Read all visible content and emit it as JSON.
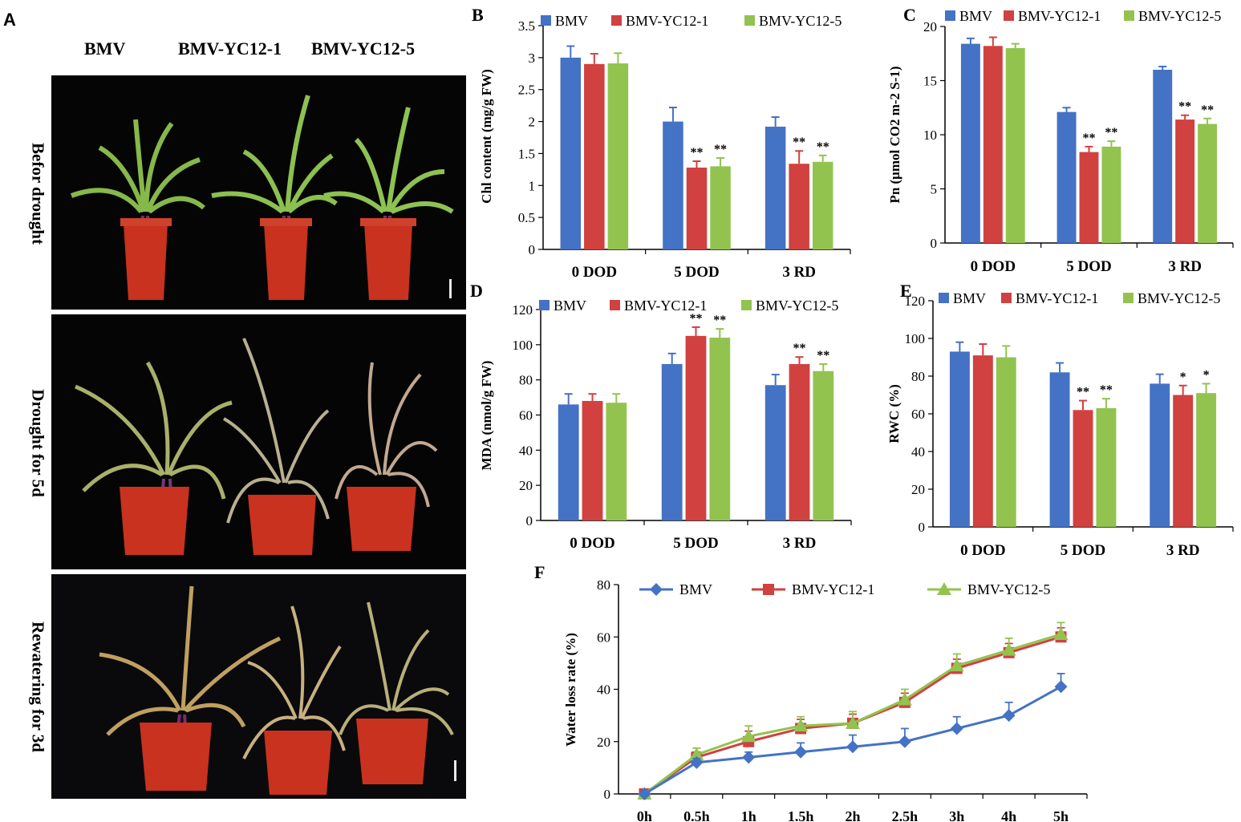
{
  "panel_a": {
    "letter": "A",
    "column_headers": [
      "BMV",
      "BMV-YC12-1",
      "BMV-YC12-5"
    ],
    "row_labels": [
      "Befor drought",
      "Drought for 5d",
      "Rewatering for 3d"
    ]
  },
  "colors": {
    "bmv": "#4472C4",
    "yc12_1": "#D0413F",
    "yc12_5": "#93C34F",
    "pot": "#C8321E"
  },
  "chart_data": [
    {
      "panel": "B",
      "type": "bar",
      "ylabel": "Chl content (mg/g FW)",
      "ylim": [
        0,
        3.5
      ],
      "yticks": [
        "0",
        "0.5",
        "1",
        "1.5",
        "2",
        "2.5",
        "3",
        "3.5"
      ],
      "categories": [
        "0 DOD",
        "5 DOD",
        "3 RD"
      ],
      "legend": [
        "BMV",
        "BMV-YC12-1",
        "BMV-YC12-5"
      ],
      "series": [
        {
          "name": "BMV",
          "values": [
            3.0,
            2.0,
            1.92
          ],
          "errors": [
            0.18,
            0.22,
            0.15
          ],
          "marks": [
            "",
            "",
            ""
          ]
        },
        {
          "name": "BMV-YC12-1",
          "values": [
            2.9,
            1.28,
            1.34
          ],
          "errors": [
            0.16,
            0.1,
            0.2
          ],
          "marks": [
            "",
            "**",
            "**"
          ]
        },
        {
          "name": "BMV-YC12-5",
          "values": [
            2.91,
            1.3,
            1.37
          ],
          "errors": [
            0.16,
            0.13,
            0.1
          ],
          "marks": [
            "",
            "**",
            "**"
          ]
        }
      ]
    },
    {
      "panel": "C",
      "type": "bar",
      "ylabel": "Pn (μmol CO2 m-2  S-1)",
      "ylim": [
        0,
        20
      ],
      "yticks": [
        "0",
        "5",
        "10",
        "15",
        "20"
      ],
      "categories": [
        "0 DOD",
        "5 DOD",
        "3 RD"
      ],
      "legend": [
        "BMV",
        "BMV-YC12-1",
        "BMV-YC12-5"
      ],
      "series": [
        {
          "name": "BMV",
          "values": [
            18.4,
            12.1,
            16.0
          ],
          "errors": [
            0.5,
            0.4,
            0.3
          ],
          "marks": [
            "",
            "",
            ""
          ]
        },
        {
          "name": "BMV-YC12-1",
          "values": [
            18.2,
            8.4,
            11.4
          ],
          "errors": [
            0.8,
            0.5,
            0.4
          ],
          "marks": [
            "",
            "**",
            "**"
          ]
        },
        {
          "name": "BMV-YC12-5",
          "values": [
            18.0,
            8.9,
            11.0
          ],
          "errors": [
            0.4,
            0.5,
            0.5
          ],
          "marks": [
            "",
            "**",
            "**"
          ]
        }
      ]
    },
    {
      "panel": "D",
      "type": "bar",
      "ylabel": "MDA (nmol/g FW)",
      "ylim": [
        0,
        120
      ],
      "yticks": [
        "0",
        "20",
        "40",
        "60",
        "80",
        "100",
        "120"
      ],
      "categories": [
        "0 DOD",
        "5 DOD",
        "3 RD"
      ],
      "legend": [
        "BMV",
        "BMV-YC12-1",
        "BMV-YC12-5"
      ],
      "series": [
        {
          "name": "BMV",
          "values": [
            66,
            89,
            77
          ],
          "errors": [
            6,
            6,
            6
          ],
          "marks": [
            "",
            "",
            ""
          ]
        },
        {
          "name": "BMV-YC12-1",
          "values": [
            68,
            105,
            89
          ],
          "errors": [
            4,
            5,
            4
          ],
          "marks": [
            "",
            "**",
            "**"
          ]
        },
        {
          "name": "BMV-YC12-5",
          "values": [
            67,
            104,
            85
          ],
          "errors": [
            5,
            5,
            4
          ],
          "marks": [
            "",
            "**",
            "**"
          ]
        }
      ]
    },
    {
      "panel": "E",
      "type": "bar",
      "ylabel": "RWC (%)",
      "ylim": [
        0,
        120
      ],
      "yticks": [
        "0",
        "20",
        "40",
        "60",
        "80",
        "100",
        "120"
      ],
      "categories": [
        "0 DOD",
        "5 DOD",
        "3 RD"
      ],
      "legend": [
        "BMV",
        "BMV-YC12-1",
        "BMV-YC12-5"
      ],
      "series": [
        {
          "name": "BMV",
          "values": [
            93,
            82,
            76
          ],
          "errors": [
            5,
            5,
            5
          ],
          "marks": [
            "",
            "",
            ""
          ]
        },
        {
          "name": "BMV-YC12-1",
          "values": [
            91,
            62,
            70
          ],
          "errors": [
            6,
            5,
            5
          ],
          "marks": [
            "",
            "**",
            "*"
          ]
        },
        {
          "name": "BMV-YC12-5",
          "values": [
            90,
            63,
            71
          ],
          "errors": [
            6,
            5,
            5
          ],
          "marks": [
            "",
            "**",
            "*"
          ]
        }
      ]
    },
    {
      "panel": "F",
      "type": "line",
      "ylabel": "Water loss rate (%)",
      "ylim": [
        0,
        80
      ],
      "yticks": [
        "0",
        "20",
        "40",
        "60",
        "80"
      ],
      "x": [
        "0h",
        "0.5h",
        "1h",
        "1.5h",
        "2h",
        "2.5h",
        "3h",
        "4h",
        "5h"
      ],
      "legend": [
        "BMV",
        "BMV-YC12-1",
        "BMV-YC12-5"
      ],
      "series": [
        {
          "name": "BMV",
          "marker": "diamond",
          "values": [
            0,
            12,
            14,
            16,
            18,
            20,
            25,
            30,
            41
          ],
          "errors": [
            0,
            1.5,
            2,
            3.5,
            4.5,
            5,
            4.5,
            5,
            5
          ]
        },
        {
          "name": "BMV-YC12-1",
          "marker": "square",
          "values": [
            0,
            14,
            20,
            25,
            27,
            35,
            48,
            54,
            60
          ],
          "errors": [
            0,
            2,
            4,
            3.5,
            3.5,
            3.5,
            3.5,
            3.5,
            3.5
          ]
        },
        {
          "name": "BMV-YC12-5",
          "marker": "triangle",
          "values": [
            0,
            15,
            22,
            26,
            27,
            36,
            49,
            55,
            61
          ],
          "errors": [
            0,
            2.5,
            4,
            3.5,
            4.5,
            4,
            4.5,
            4.5,
            4.5
          ]
        }
      ]
    }
  ]
}
